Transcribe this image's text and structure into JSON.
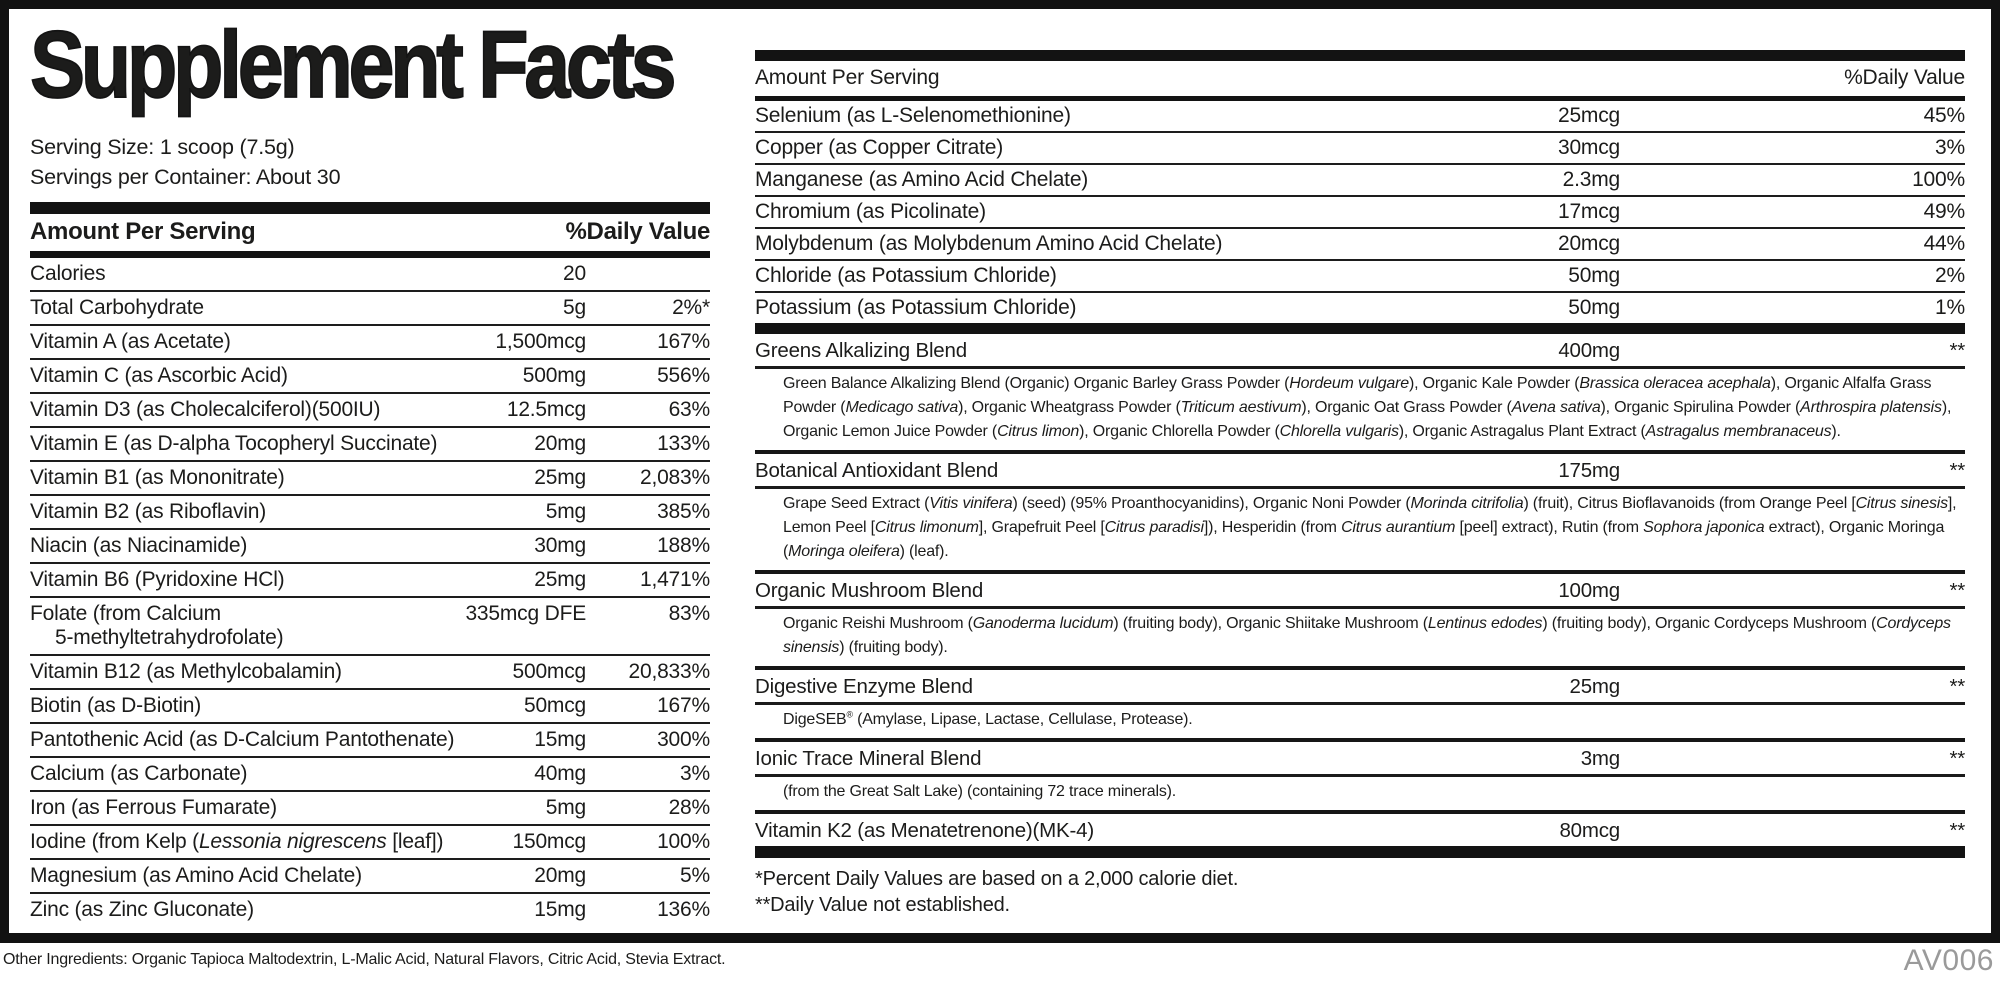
{
  "label": {
    "title": "Supplement Facts",
    "serving_size": "Serving Size: 1 scoop (7.5g)",
    "servings_per_container": "Servings per Container: About 30",
    "columns": {
      "amount_header": "Amount Per Serving",
      "dv_header": "%Daily Value"
    },
    "left_rows": [
      {
        "name": "Calories",
        "amount": "20",
        "dv": ""
      },
      {
        "name": "Total Carbohydrate",
        "amount": "5g",
        "dv": "2%*"
      },
      {
        "name": "Vitamin A (as Acetate)",
        "amount": "1,500mcg",
        "dv": "167%"
      },
      {
        "name": "Vitamin C (as Ascorbic Acid)",
        "amount": "500mg",
        "dv": "556%"
      },
      {
        "name": "Vitamin D3 (as Cholecalciferol)(500IU)",
        "amount": "12.5mcg",
        "dv": "63%"
      },
      {
        "name": "Vitamin E (as D-alpha Tocopheryl Succinate)",
        "amount": "20mg",
        "dv": "133%"
      },
      {
        "name": "Vitamin B1 (as Mononitrate)",
        "amount": "25mg",
        "dv": "2,083%"
      },
      {
        "name": "Vitamin B2 (as Riboflavin)",
        "amount": "5mg",
        "dv": "385%"
      },
      {
        "name": "Niacin (as Niacinamide)",
        "amount": "30mg",
        "dv": "188%"
      },
      {
        "name": "Vitamin B6 (Pyridoxine HCl)",
        "amount": "25mg",
        "dv": "1,471%"
      },
      {
        "name": "Folate (from Calcium",
        "name2": "5-methyltetrahydrofolate)",
        "amount": "335mcg DFE",
        "dv": "83%"
      },
      {
        "name": "Vitamin B12 (as Methylcobalamin)",
        "amount": "500mcg",
        "dv": "20,833%"
      },
      {
        "name": "Biotin (as D-Biotin)",
        "amount": "50mcg",
        "dv": "167%"
      },
      {
        "name": "Pantothenic Acid (as D-Calcium Pantothenate)",
        "amount": "15mg",
        "dv": "300%"
      },
      {
        "name": "Calcium (as Carbonate)",
        "amount": "40mg",
        "dv": "3%"
      },
      {
        "name": "Iron (as Ferrous Fumarate)",
        "amount": "5mg",
        "dv": "28%"
      },
      {
        "name": [
          {
            "t": "Iodine (from Kelp ("
          },
          {
            "t": "Lessonia nigrescens",
            "i": true
          },
          {
            "t": " [leaf])"
          }
        ],
        "amount": "150mcg",
        "dv": "100%"
      },
      {
        "name": "Magnesium (as Amino Acid Chelate)",
        "amount": "20mg",
        "dv": "5%"
      },
      {
        "name": "Zinc (as Zinc Gluconate)",
        "amount": "15mg",
        "dv": "136%"
      }
    ],
    "right_rows": [
      {
        "name": "Selenium (as L-Selenomethionine)",
        "amount": "25mcg",
        "dv": "45%"
      },
      {
        "name": "Copper (as Copper Citrate)",
        "amount": "30mcg",
        "dv": "3%"
      },
      {
        "name": "Manganese (as Amino Acid Chelate)",
        "amount": "2.3mg",
        "dv": "100%"
      },
      {
        "name": "Chromium (as Picolinate)",
        "amount": "17mcg",
        "dv": "49%"
      },
      {
        "name": "Molybdenum (as Molybdenum Amino Acid Chelate)",
        "amount": "20mcg",
        "dv": "44%"
      },
      {
        "name": "Chloride (as Potassium Chloride)",
        "amount": "50mg",
        "dv": "2%"
      },
      {
        "name": "Potassium (as Potassium Chloride)",
        "amount": "50mg",
        "dv": "1%"
      }
    ],
    "blends": [
      {
        "name": "Greens Alkalizing Blend",
        "amount": "400mg",
        "dv": "**",
        "desc": [
          {
            "t": "Green Balance Alkalizing Blend (Organic) Organic Barley Grass Powder ("
          },
          {
            "t": "Hordeum vulgare",
            "i": true
          },
          {
            "t": "), Organic Kale Powder ("
          },
          {
            "t": "Brassica oleracea acephala",
            "i": true
          },
          {
            "t": "), Organic Alfalfa Grass Powder ("
          },
          {
            "t": "Medicago sativa",
            "i": true
          },
          {
            "t": "), Organic Wheatgrass Powder ("
          },
          {
            "t": "Triticum aestivum",
            "i": true
          },
          {
            "t": "), Organic Oat Grass Powder ("
          },
          {
            "t": "Avena sativa",
            "i": true
          },
          {
            "t": "), Organic Spirulina Powder ("
          },
          {
            "t": "Arthrospira platensis",
            "i": true
          },
          {
            "t": "), Organic Lemon Juice Powder ("
          },
          {
            "t": "Citrus limon",
            "i": true
          },
          {
            "t": "), Organic Chlorella Powder ("
          },
          {
            "t": "Chlorella vulgaris",
            "i": true
          },
          {
            "t": "), Organic Astragalus Plant Extract ("
          },
          {
            "t": "Astragalus membranaceus",
            "i": true
          },
          {
            "t": ")."
          }
        ]
      },
      {
        "name": "Botanical Antioxidant Blend",
        "amount": "175mg",
        "dv": "**",
        "desc": [
          {
            "t": "Grape Seed Extract ("
          },
          {
            "t": "Vitis vinifera",
            "i": true
          },
          {
            "t": ") (seed) (95% Proanthocyanidins), Organic Noni Powder ("
          },
          {
            "t": "Morinda citrifolia",
            "i": true
          },
          {
            "t": ") (fruit), Citrus Bioflavanoids (from Orange Peel ["
          },
          {
            "t": "Citrus sinesis",
            "i": true
          },
          {
            "t": "], Lemon Peel ["
          },
          {
            "t": "Citrus limonum",
            "i": true
          },
          {
            "t": "], Grapefruit Peel ["
          },
          {
            "t": "Citrus paradisi",
            "i": true
          },
          {
            "t": "]), Hesperidin (from "
          },
          {
            "t": "Citrus aurantium",
            "i": true
          },
          {
            "t": " [peel] extract), Rutin (from "
          },
          {
            "t": "Sophora japonica",
            "i": true
          },
          {
            "t": " extract), Organic Moringa ("
          },
          {
            "t": "Moringa oleifera",
            "i": true
          },
          {
            "t": ") (leaf)."
          }
        ]
      },
      {
        "name": "Organic Mushroom Blend",
        "amount": "100mg",
        "dv": "**",
        "desc": [
          {
            "t": "Organic Reishi Mushroom ("
          },
          {
            "t": "Ganoderma lucidum",
            "i": true
          },
          {
            "t": ") (fruiting body), Organic Shiitake Mushroom ("
          },
          {
            "t": "Lentinus edodes",
            "i": true
          },
          {
            "t": ") (fruiting body), Organic Cordyceps Mushroom ("
          },
          {
            "t": "Cordyceps sinensis",
            "i": true
          },
          {
            "t": ") (fruiting body)."
          }
        ]
      },
      {
        "name": "Digestive Enzyme Blend",
        "amount": "25mg",
        "dv": "**",
        "desc": [
          {
            "t": "DigeSEB"
          },
          {
            "t": "®",
            "sup": true
          },
          {
            "t": " (Amylase, Lipase, Lactase, Cellulase, Protease)."
          }
        ]
      },
      {
        "name": "Ionic Trace Mineral Blend",
        "amount": "3mg",
        "dv": "**",
        "desc": [
          {
            "t": "(from the Great Salt Lake) (containing 72 trace minerals)."
          }
        ]
      },
      {
        "name": "Vitamin K2 (as Menatetrenone)(MK-4)",
        "amount": "80mcg",
        "dv": "**"
      }
    ],
    "footnotes": [
      "*Percent Daily Values are based on a 2,000 calorie diet.",
      "**Daily Value not established."
    ]
  },
  "footer": {
    "other_ingredients": "Other Ingredients: Organic Tapioca Maltodextrin, L-Malic Acid, Natural Flavors, Citric Acid, Stevia Extract.",
    "code": "AV006"
  },
  "colors": {
    "text": "#1c1c1b",
    "bar": "#131313",
    "code_gray": "#9a9a9a"
  }
}
